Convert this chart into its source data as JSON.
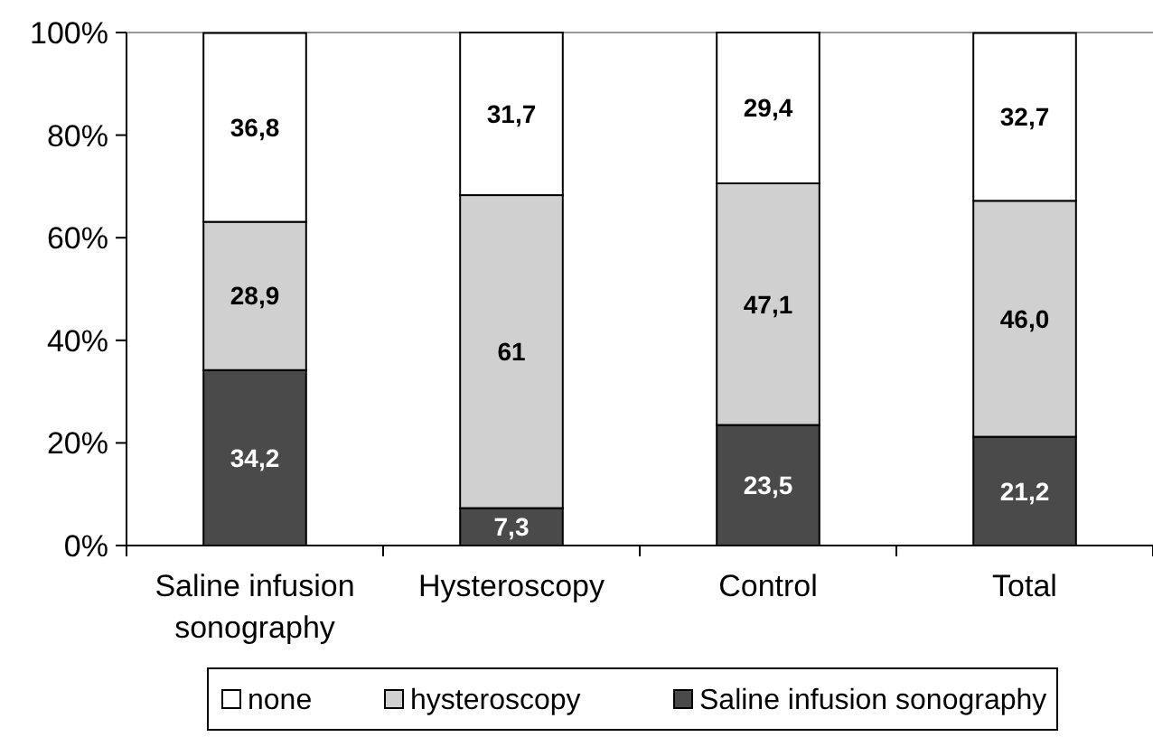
{
  "chart_data": {
    "type": "bar",
    "stacked": true,
    "categories": [
      "Saline infusion sonography",
      "Hysteroscopy",
      "Control",
      "Total"
    ],
    "series": [
      {
        "name": "Saline infusion sonography",
        "color": "#4a4a4a",
        "values": [
          34.2,
          7.3,
          23.5,
          21.2
        ],
        "value_labels": [
          "34,2",
          "7,3",
          "23,5",
          "21,2"
        ]
      },
      {
        "name": "hysteroscopy",
        "color": "#d0d0d0",
        "values": [
          28.9,
          61,
          47.1,
          46.0
        ],
        "value_labels": [
          "28,9",
          "61",
          "47,1",
          "46,0"
        ]
      },
      {
        "name": "none",
        "color": "#ffffff",
        "values": [
          36.8,
          31.7,
          29.4,
          32.7
        ],
        "value_labels": [
          "36,8",
          "31,7",
          "29,4",
          "32,7"
        ]
      }
    ],
    "ylim": [
      0,
      100
    ],
    "yticks": [
      {
        "value": 0,
        "label": "0%"
      },
      {
        "value": 20,
        "label": "20%"
      },
      {
        "value": 40,
        "label": "40%"
      },
      {
        "value": 60,
        "label": "60%"
      },
      {
        "value": 80,
        "label": "80%"
      },
      {
        "value": 100,
        "label": "100%"
      }
    ],
    "grid": false,
    "legend": "bottom"
  }
}
